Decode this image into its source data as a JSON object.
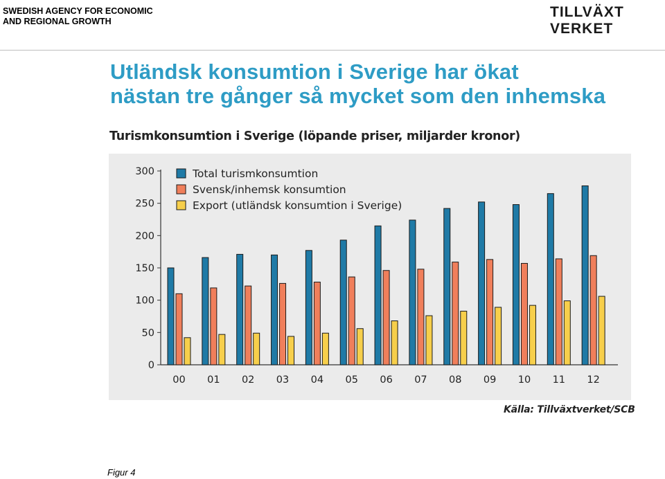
{
  "header": {
    "agency_line1": "SWEDISH AGENCY FOR ECONOMIC",
    "agency_line2": "AND REGIONAL GROWTH",
    "logo_line1": "TILLVÄXT",
    "logo_line2": "VERKET"
  },
  "headline": {
    "line1": "Utländsk konsumtion i Sverige har ökat",
    "line2": "nästan tre gånger så mycket som den inhemska"
  },
  "colors": {
    "headline": "#2e9cc5",
    "series_total": "#1f7aa6",
    "series_domestic": "#f07f5b",
    "series_export": "#f7cf4b",
    "panel_background": "#ebebeb"
  },
  "chart_data": {
    "type": "bar",
    "title": "Turismkonsumtion i Sverige (löpande priser, miljarder kronor)",
    "xlabel": "",
    "ylabel": "",
    "ylim": [
      0,
      300
    ],
    "yticks": [
      0,
      50,
      100,
      150,
      200,
      250,
      300
    ],
    "grid": false,
    "legend_position": "top-left",
    "categories": [
      "00",
      "01",
      "02",
      "03",
      "04",
      "05",
      "06",
      "07",
      "08",
      "09",
      "10",
      "11",
      "12"
    ],
    "series": [
      {
        "name": "Total turismkonsumtion",
        "values": [
          150,
          166,
          171,
          170,
          177,
          193,
          215,
          224,
          242,
          252,
          248,
          265,
          277
        ]
      },
      {
        "name": "Svensk/inhemsk konsumtion",
        "values": [
          110,
          119,
          122,
          126,
          128,
          136,
          146,
          148,
          159,
          163,
          157,
          164,
          169
        ]
      },
      {
        "name": "Export (utländsk konsumtion i Sverige)",
        "values": [
          42,
          47,
          49,
          44,
          49,
          56,
          68,
          76,
          83,
          89,
          92,
          99,
          106
        ]
      }
    ],
    "source": "Källa: Tillväxtverket/SCB"
  },
  "footer": {
    "figure_label": "Figur 4"
  }
}
